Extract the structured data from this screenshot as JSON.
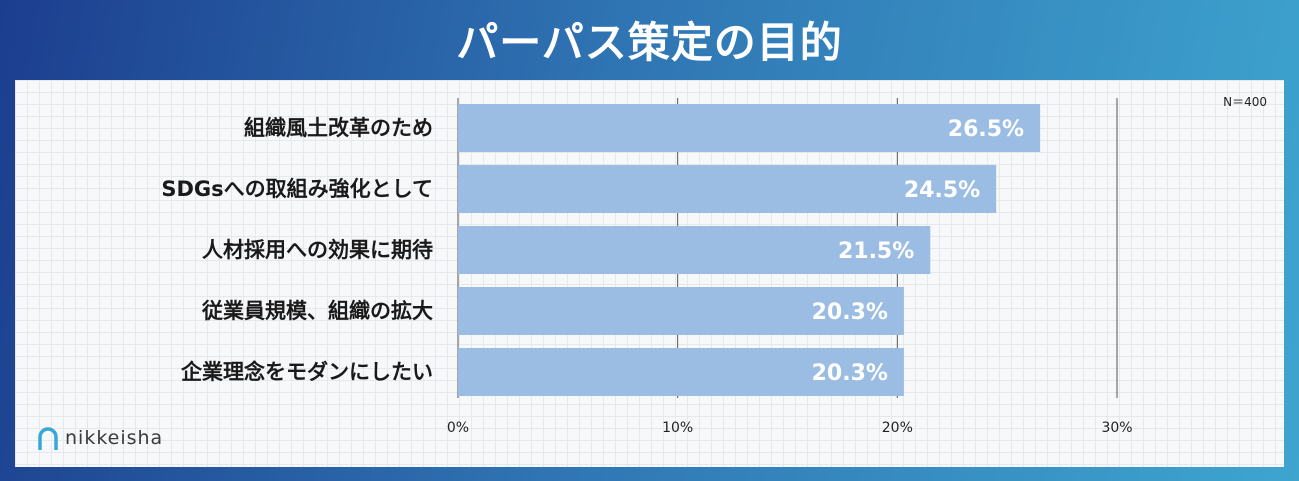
{
  "title": "パーパス策定の目的",
  "logo": {
    "text": "nikkeisha"
  },
  "colors": {
    "bar": "#9bbde4",
    "axis": "#555555",
    "background_accent": "#2f74b3"
  },
  "chart_data": {
    "type": "bar",
    "orientation": "horizontal",
    "note": "N＝400",
    "categories": [
      "組織風土改革のため",
      "SDGsへの取組み強化として",
      "人材採用への効果に期待",
      "従業員規模、組織の拡大",
      "企業理念をモダンにしたい"
    ],
    "values": [
      26.5,
      24.5,
      21.5,
      20.3,
      20.3
    ],
    "value_labels": [
      "26.5%",
      "24.5%",
      "21.5%",
      "20.3%",
      "20.3%"
    ],
    "xlim": [
      0,
      30
    ],
    "ticks": [
      0,
      10,
      20,
      30
    ],
    "tick_labels": [
      "0%",
      "10%",
      "20%",
      "30%"
    ],
    "grid": true
  }
}
